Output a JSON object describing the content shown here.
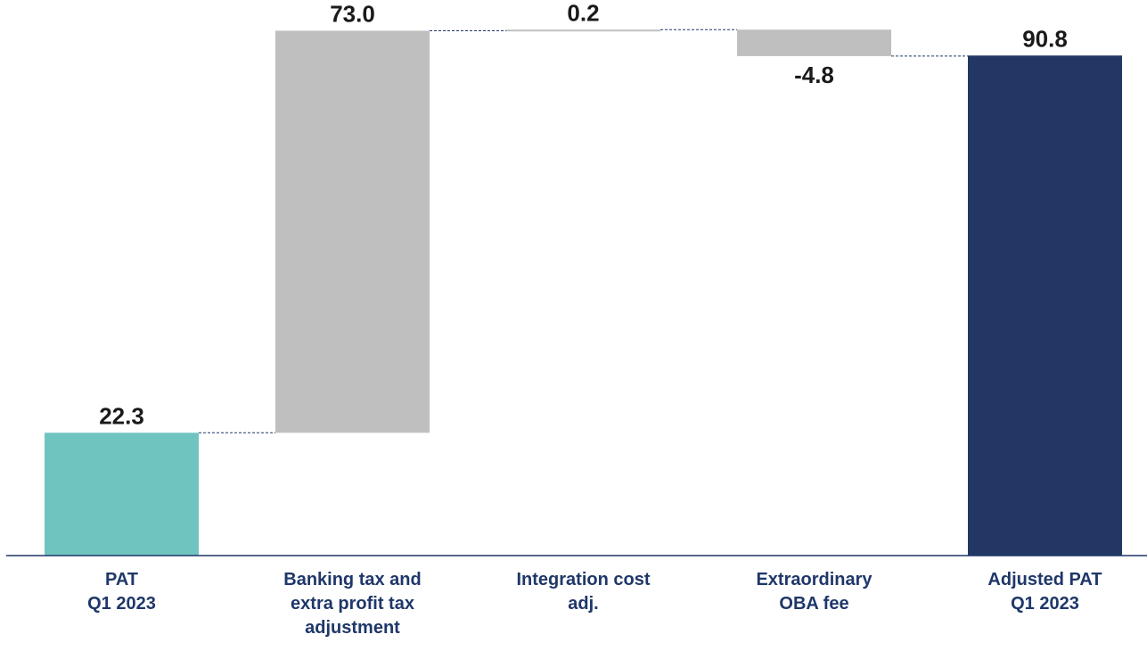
{
  "chart_data": {
    "type": "bar",
    "subtype": "waterfall",
    "categories": [
      [
        "PAT",
        "Q1 2023"
      ],
      [
        "Banking tax and",
        "extra profit tax",
        "adjustment"
      ],
      [
        "Integration cost",
        "adj."
      ],
      [
        "Extraordinary",
        "OBA fee"
      ],
      [
        "Adjusted PAT",
        "Q1 2023"
      ]
    ],
    "values": [
      22.3,
      73.0,
      0.2,
      -4.8,
      90.8
    ],
    "value_labels": [
      "22.3",
      "73.0",
      "0.2",
      "-4.8",
      "90.8"
    ],
    "kinds": [
      "total",
      "delta",
      "delta",
      "delta",
      "total"
    ],
    "ylim": [
      0,
      95.7
    ],
    "grid": false,
    "connectors": "dashed",
    "colors": {
      "start_total": "#70c4bf",
      "delta": "#bfbfbf",
      "end_total": "#223763",
      "axis": "#1f3769",
      "connector": "#1f3769",
      "category_text": "#1f3769",
      "value_text": "#1a1a1a"
    }
  }
}
